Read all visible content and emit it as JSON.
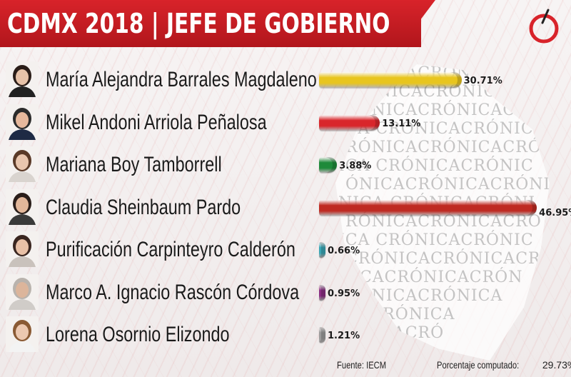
{
  "header": {
    "title": "CDMX 2018 | JEFE DE GOBIERNO"
  },
  "watermark": {
    "lines": [
      "RÓNICACRÓNICA",
      "CRÓNICACRÓNICA",
      "RÓNICACRÓNICAC",
      "ICA CRÓNICACRÓNICA",
      "RÓNICACRÓNICACRÓN",
      "ICA CRÓNICACRÓNIC",
      "ÓNICACRÓNICACRÓNIC",
      "NICA CRÓNICACRÓNI",
      "RÓNICACRÓNICACRÓ",
      "ICA CRÓNICACRÓNIC",
      "CRÓNICACRÓNICACR",
      "NICACRÓNICACRÓN",
      "RÓNICACRÓNICA",
      "ICACRÓNICA",
      "ÓNICACRÓ"
    ]
  },
  "chart_data": {
    "type": "bar",
    "orientation": "horizontal",
    "title": "CDMX 2018 | JEFE DE GOBIERNO",
    "categories": [
      "María Alejandra Barrales Magdaleno",
      "Mikel Andoni Arriola Peñalosa",
      "Mariana Boy Tamborrell",
      "Claudia Sheinbaum Pardo",
      "Purificación Carpinteyro Calderón",
      "Marco A. Ignacio Rascón Córdova",
      "Lorena Osornio Elizondo"
    ],
    "values": [
      30.71,
      13.11,
      3.88,
      46.95,
      0.66,
      0.95,
      1.21
    ],
    "value_labels": [
      "30.71%",
      "13.11%",
      "3.88%",
      "46.95%",
      "0.66%",
      "0.95%",
      "1.21%"
    ],
    "colors": [
      "#e8c51e",
      "#d9262b",
      "#1e8a3a",
      "#bf2a22",
      "#3aa6b5",
      "#8a2d82",
      "#9b9b9b"
    ],
    "unit": "%",
    "grid": false,
    "legend": "none"
  },
  "footer": {
    "source": "Fuente: IECM",
    "computed_label": "Porcentaje computado:",
    "computed_value": "29.73%"
  }
}
